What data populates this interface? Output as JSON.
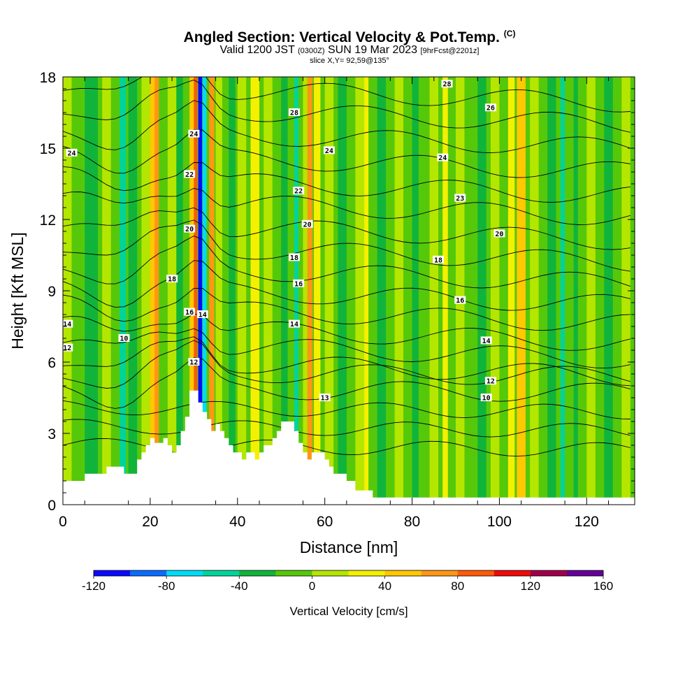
{
  "title": {
    "main": "Angled Section: Vertical Velocity & Pot.Temp.",
    "mark": "(C)",
    "valid_prefix": "Valid 1200 JST",
    "valid_utc": "(0300Z)",
    "valid_date": "SUN 19 Mar 2023",
    "forecast": "[9hrFcst@2201z]",
    "slice": "slice X,Y= 92,59@135°"
  },
  "chart_data": {
    "type": "heatmap",
    "xlabel": "Distance [nm]",
    "ylabel": "Height [Kft MSL]",
    "xlim": [
      0,
      131
    ],
    "ylim": [
      0,
      18
    ],
    "x_ticks": [
      "0",
      "20",
      "40",
      "60",
      "80",
      "100",
      "120"
    ],
    "x_tick_values": [
      0,
      20,
      40,
      60,
      80,
      100,
      120
    ],
    "y_ticks": [
      "0",
      "3",
      "6",
      "9",
      "12",
      "15",
      "18"
    ],
    "y_tick_values": [
      0,
      3,
      6,
      9,
      12,
      15,
      18
    ],
    "colorbar": {
      "title": "Vertical Velocity [cm/s]",
      "labels": [
        "-120",
        "-80",
        "-40",
        "0",
        "40",
        "80",
        "120",
        "160"
      ],
      "label_values": [
        -120,
        -80,
        -40,
        0,
        40,
        80,
        120,
        160
      ],
      "colors": [
        "#0a0aff",
        "#0a6cff",
        "#00dcf5",
        "#00d49a",
        "#10b43a",
        "#56c80a",
        "#b4e600",
        "#f5f000",
        "#ffc800",
        "#ff9614",
        "#ff5a0a",
        "#f00a0a",
        "#a0004b",
        "#640096"
      ]
    },
    "terrain": [
      [
        0,
        1
      ],
      [
        5,
        1
      ],
      [
        5,
        1.3
      ],
      [
        10,
        1.3
      ],
      [
        10,
        1.6
      ],
      [
        14,
        1.6
      ],
      [
        14,
        1.3
      ],
      [
        17,
        1.3
      ],
      [
        17,
        1.9
      ],
      [
        18,
        1.9
      ],
      [
        18,
        2.2
      ],
      [
        19,
        2.2
      ],
      [
        19,
        2.5
      ],
      [
        20,
        2.5
      ],
      [
        20,
        2.8
      ],
      [
        21,
        2.8
      ],
      [
        21,
        2.6
      ],
      [
        23,
        2.6
      ],
      [
        23,
        2.8
      ],
      [
        24,
        2.8
      ],
      [
        24,
        2.5
      ],
      [
        25,
        2.5
      ],
      [
        25,
        2.2
      ],
      [
        26,
        2.2
      ],
      [
        26,
        2.5
      ],
      [
        27,
        2.5
      ],
      [
        27,
        3.1
      ],
      [
        28,
        3.1
      ],
      [
        28,
        3.7
      ],
      [
        29,
        3.7
      ],
      [
        29,
        4.8
      ],
      [
        31,
        4.8
      ],
      [
        31,
        4.3
      ],
      [
        32,
        4.3
      ],
      [
        32,
        3.9
      ],
      [
        33,
        3.9
      ],
      [
        33,
        3.6
      ],
      [
        34,
        3.6
      ],
      [
        34,
        3.1
      ],
      [
        35,
        3.1
      ],
      [
        35,
        3.4
      ],
      [
        36,
        3.4
      ],
      [
        36,
        3.1
      ],
      [
        37,
        3.1
      ],
      [
        37,
        2.8
      ],
      [
        38,
        2.8
      ],
      [
        38,
        2.5
      ],
      [
        39,
        2.5
      ],
      [
        39,
        2.2
      ],
      [
        41,
        2.2
      ],
      [
        41,
        1.9
      ],
      [
        42,
        1.9
      ],
      [
        42,
        2.2
      ],
      [
        44,
        2.2
      ],
      [
        44,
        1.9
      ],
      [
        45,
        1.9
      ],
      [
        45,
        2.2
      ],
      [
        46,
        2.2
      ],
      [
        46,
        2.5
      ],
      [
        48,
        2.5
      ],
      [
        48,
        2.8
      ],
      [
        49,
        2.8
      ],
      [
        49,
        3.1
      ],
      [
        50,
        3.1
      ],
      [
        50,
        3.5
      ],
      [
        53,
        3.5
      ],
      [
        53,
        3.1
      ],
      [
        54,
        3.1
      ],
      [
        54,
        2.6
      ],
      [
        55,
        2.6
      ],
      [
        55,
        2.2
      ],
      [
        56,
        2.2
      ],
      [
        56,
        1.9
      ],
      [
        57,
        1.9
      ],
      [
        57,
        2.2
      ],
      [
        60,
        2.2
      ],
      [
        60,
        1.9
      ],
      [
        61,
        1.9
      ],
      [
        61,
        1.6
      ],
      [
        62,
        1.6
      ],
      [
        62,
        1.3
      ],
      [
        65,
        1.3
      ],
      [
        65,
        1.0
      ],
      [
        67,
        1.0
      ],
      [
        67,
        0.6
      ],
      [
        71,
        0.6
      ],
      [
        71,
        0.3
      ],
      [
        131,
        0.3
      ]
    ],
    "isentropes": [
      "10",
      "12",
      "13",
      "14",
      "16",
      "18",
      "20",
      "22",
      "23",
      "24",
      "26",
      "28"
    ]
  }
}
